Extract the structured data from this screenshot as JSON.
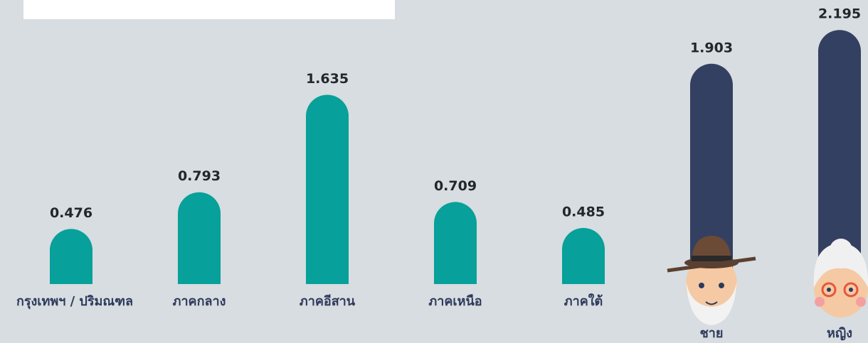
{
  "chart_data": [
    {
      "type": "bar",
      "categories": [
        "กรุงเทพฯ / ปริมณฑล",
        "ภาคกลาง",
        "ภาคอีสาน",
        "ภาคเหนือ",
        "ภาคใต้"
      ],
      "values": [
        0.476,
        0.793,
        1.635,
        0.709,
        0.485
      ],
      "color": "#07a09a"
    },
    {
      "type": "bar",
      "categories": [
        "ชาย",
        "หญิง"
      ],
      "values": [
        1.903,
        2.195
      ],
      "color": "#344061"
    }
  ]
}
